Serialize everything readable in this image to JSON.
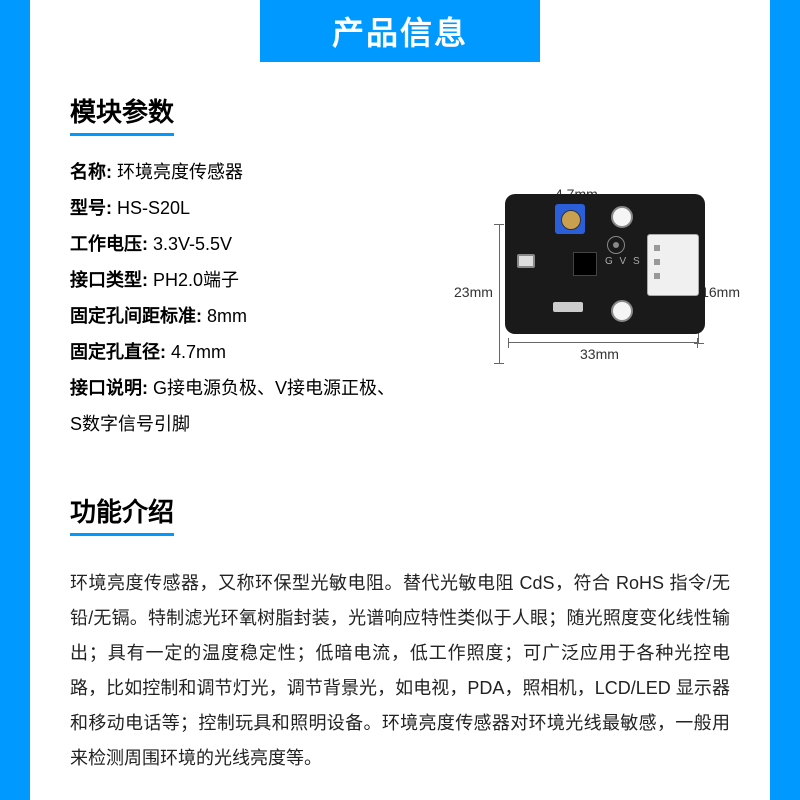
{
  "header": {
    "title": "产品信息"
  },
  "sections": {
    "params_title": "模块参数",
    "features_title": "功能介绍"
  },
  "params": [
    {
      "label": "名称:",
      "value": " 环境亮度传感器"
    },
    {
      "label": "型号:",
      "value": " HS-S20L"
    },
    {
      "label": "工作电压:",
      "value": " 3.3V-5.5V"
    },
    {
      "label": "接口类型:",
      "value": " PH2.0端子"
    },
    {
      "label": "固定孔间距标准:",
      "value": " 8mm"
    },
    {
      "label": "固定孔直径:",
      "value": " 4.7mm"
    },
    {
      "label": "接口说明:",
      "value": " G接电源负极、V接电源正极、S数字信号引脚"
    }
  ],
  "dimensions": {
    "top": "4.7mm",
    "left": "23mm",
    "right": "16mm",
    "bottom": "33mm"
  },
  "pcb_labels": {
    "gvs": "G V S"
  },
  "description": "环境亮度传感器，又称环保型光敏电阻。替代光敏电阻 CdS，符合 RoHS 指令/无铅/无镉。特制滤光环氧树脂封装，光谱响应特性类似于人眼；随光照度变化线性输出；具有一定的温度稳定性；低暗电流，低工作照度；可广泛应用于各种光控电路，比如控制和调节灯光，调节背景光，如电视，PDA，照相机，LCD/LED 显示器和移动电话等；控制玩具和照明设备。环境亮度传感器对环境光线最敏感，一般用来检测周围环境的光线亮度等。",
  "colors": {
    "brand": "#0099ff",
    "pcb": "#1a1a1a",
    "trimpot": "#2b5fd9"
  }
}
